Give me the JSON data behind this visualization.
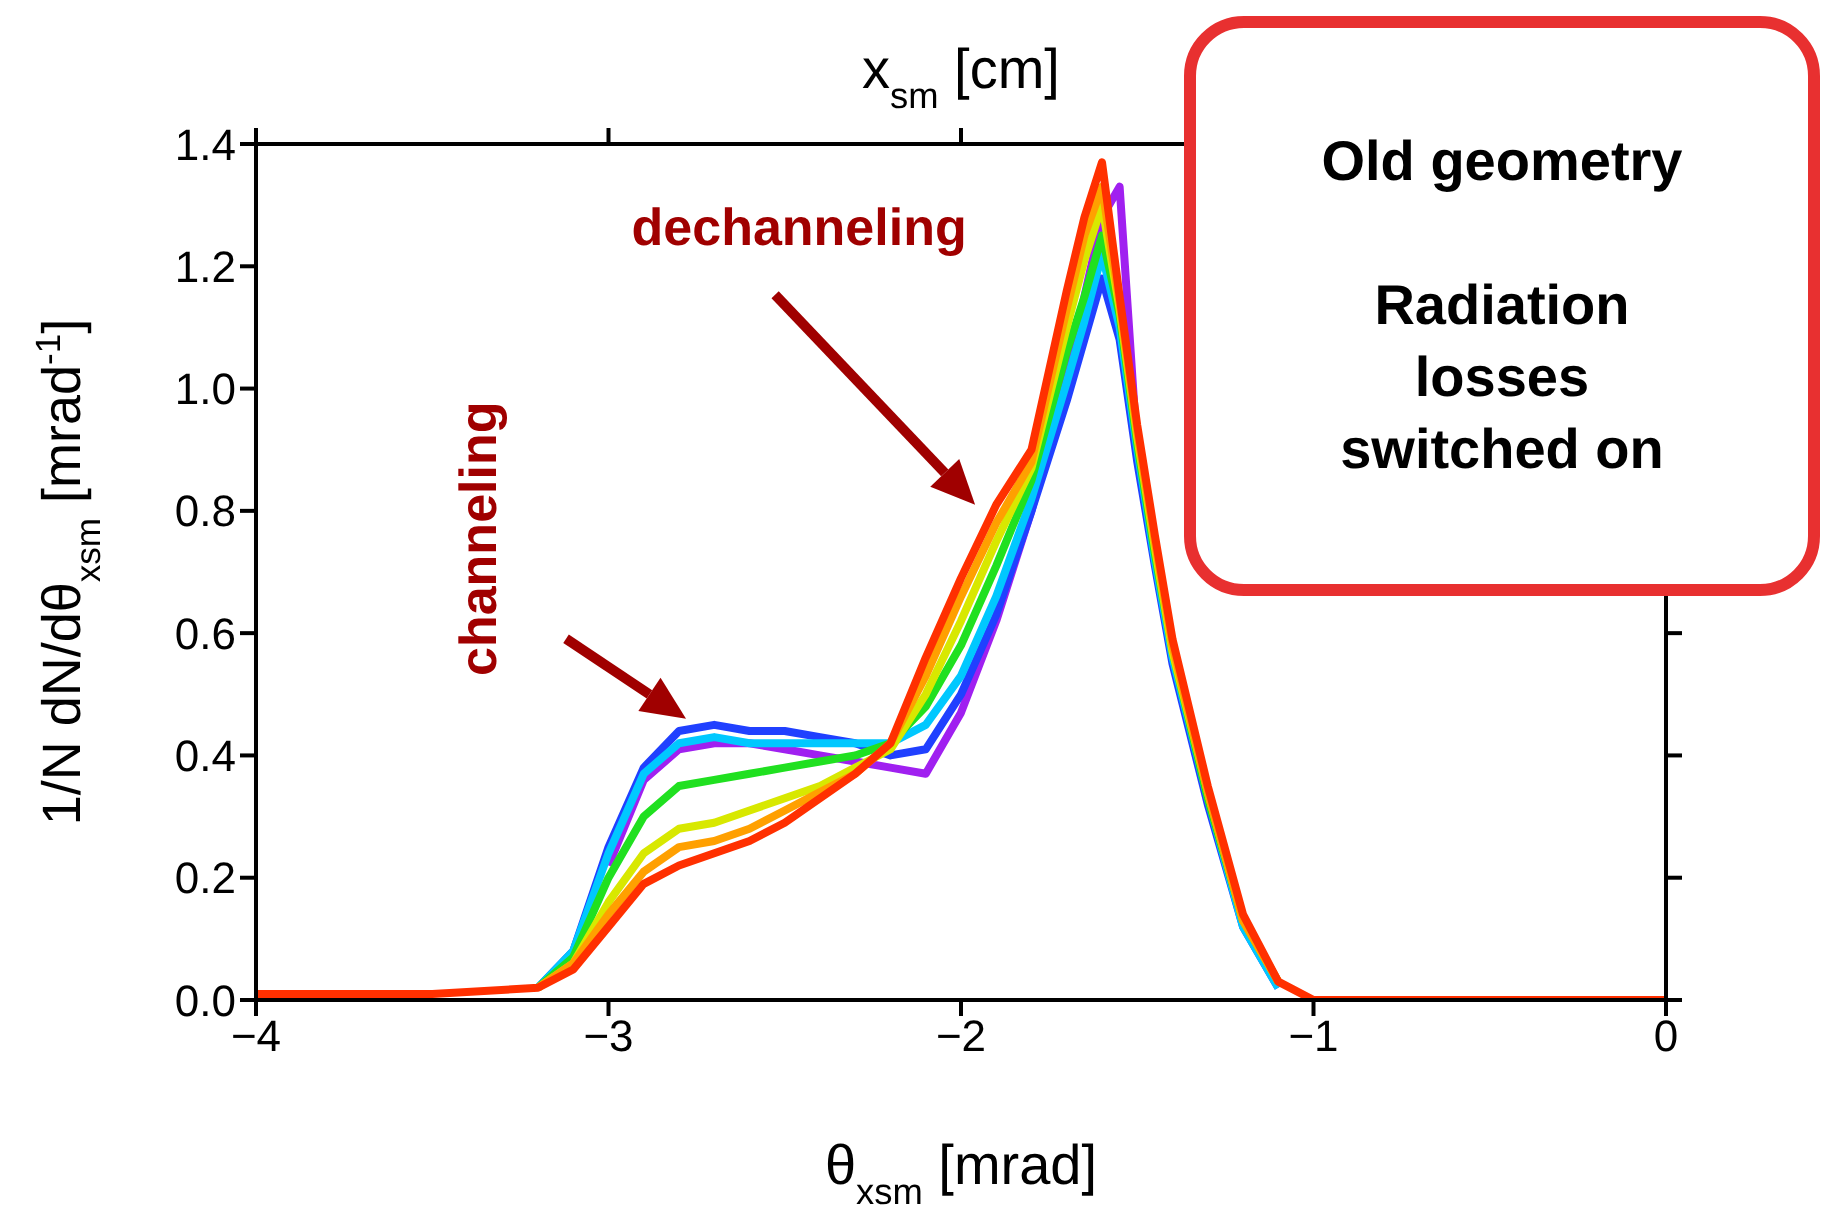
{
  "chart_data": {
    "type": "line",
    "x2label": "x$_{sm}$ [cm]",
    "xlabel": "θ$_{xsm}$ [mrad]",
    "ylabel": "1/N dN/dθ$_{xsm}$ [mrad$^{-1}$]",
    "x": [
      -4,
      -3.5,
      -3.2,
      -3.1,
      -3.0,
      -2.9,
      -2.8,
      -2.7,
      -2.6,
      -2.5,
      -2.4,
      -2.3,
      -2.2,
      -2.1,
      -2.0,
      -1.9,
      -1.8,
      -1.7,
      -1.65,
      -1.6,
      -1.55,
      -1.5,
      -1.45,
      -1.4,
      -1.3,
      -1.2,
      -1.1,
      -1.0,
      -0.5,
      0
    ],
    "series": [
      {
        "color": "#a020f0",
        "values": [
          null,
          null,
          null,
          null,
          0.22,
          0.36,
          0.41,
          0.42,
          0.42,
          0.41,
          0.4,
          0.39,
          0.38,
          0.37,
          0.47,
          0.62,
          0.8,
          1.02,
          1.15,
          1.28,
          1.33,
          0.9,
          0.72,
          null,
          null,
          null,
          null,
          null,
          null,
          null
        ]
      },
      {
        "color": "#2040ff",
        "values": [
          null,
          null,
          0.02,
          0.08,
          0.25,
          0.38,
          0.44,
          0.45,
          0.44,
          0.44,
          0.43,
          0.42,
          0.4,
          0.41,
          0.5,
          0.63,
          0.8,
          0.98,
          1.08,
          1.18,
          1.08,
          0.88,
          0.71,
          0.55,
          0.32,
          0.12,
          0.02,
          null,
          null,
          null
        ]
      },
      {
        "color": "#00c8ff",
        "values": [
          null,
          null,
          0.02,
          0.08,
          0.24,
          0.37,
          0.42,
          0.43,
          0.42,
          0.42,
          0.42,
          0.42,
          0.42,
          0.45,
          0.53,
          0.66,
          0.82,
          1.01,
          1.11,
          1.22,
          1.1,
          0.9,
          0.72,
          0.56,
          0.33,
          0.12,
          0.02,
          null,
          null,
          null
        ]
      },
      {
        "color": "#20e020",
        "values": [
          null,
          null,
          0.02,
          0.07,
          0.2,
          0.3,
          0.35,
          0.36,
          0.37,
          0.38,
          0.39,
          0.4,
          0.42,
          0.48,
          0.58,
          0.71,
          0.85,
          1.06,
          1.15,
          1.25,
          1.12,
          0.91,
          0.73,
          0.57,
          0.33,
          0.13,
          0.03,
          null,
          null,
          null
        ]
      },
      {
        "color": "#d8e800",
        "values": [
          null,
          null,
          0.02,
          0.06,
          0.16,
          0.24,
          0.28,
          0.29,
          0.31,
          0.33,
          0.35,
          0.38,
          0.41,
          0.5,
          0.62,
          0.75,
          0.87,
          1.1,
          1.21,
          1.3,
          1.13,
          0.92,
          0.74,
          0.57,
          0.34,
          0.13,
          0.03,
          null,
          null,
          null
        ]
      },
      {
        "color": "#ffa000",
        "values": [
          null,
          null,
          0.02,
          0.06,
          0.14,
          0.21,
          0.25,
          0.26,
          0.28,
          0.31,
          0.34,
          0.37,
          0.42,
          0.53,
          0.66,
          0.78,
          0.88,
          1.13,
          1.25,
          1.33,
          1.14,
          0.93,
          0.75,
          0.58,
          0.34,
          0.13,
          0.03,
          null,
          null,
          null
        ]
      },
      {
        "color": "#ff3000",
        "values": [
          0.01,
          0.01,
          0.02,
          0.05,
          0.12,
          0.19,
          0.22,
          0.24,
          0.26,
          0.29,
          0.33,
          0.37,
          0.42,
          0.56,
          0.69,
          0.81,
          0.9,
          1.16,
          1.28,
          1.37,
          1.15,
          0.94,
          0.76,
          0.59,
          0.35,
          0.14,
          0.03,
          0,
          0,
          0
        ]
      }
    ],
    "xlim": [
      -4,
      0
    ],
    "xticks": [
      {
        "value": -4,
        "label": "−4"
      },
      {
        "value": -3,
        "label": "−3"
      },
      {
        "value": -2,
        "label": "−2"
      },
      {
        "value": -1,
        "label": "−1"
      },
      {
        "value": 0,
        "label": "0"
      }
    ],
    "ylim": [
      0,
      1.4
    ],
    "yticks": [
      {
        "value": 0,
        "label": "0.0"
      },
      {
        "value": 0.2,
        "label": "0.2"
      },
      {
        "value": 0.4,
        "label": "0.4"
      },
      {
        "value": 0.6,
        "label": "0.6"
      },
      {
        "value": 0.8,
        "label": "0.8"
      },
      {
        "value": 1.0,
        "label": "1.0"
      },
      {
        "value": 1.2,
        "label": "1.2"
      },
      {
        "value": 1.4,
        "label": "1.4"
      }
    ],
    "annotations": [
      "channeling",
      "dechanneling",
      "Old geometry\n\nRadiation\nlosses\nswitched on"
    ]
  }
}
